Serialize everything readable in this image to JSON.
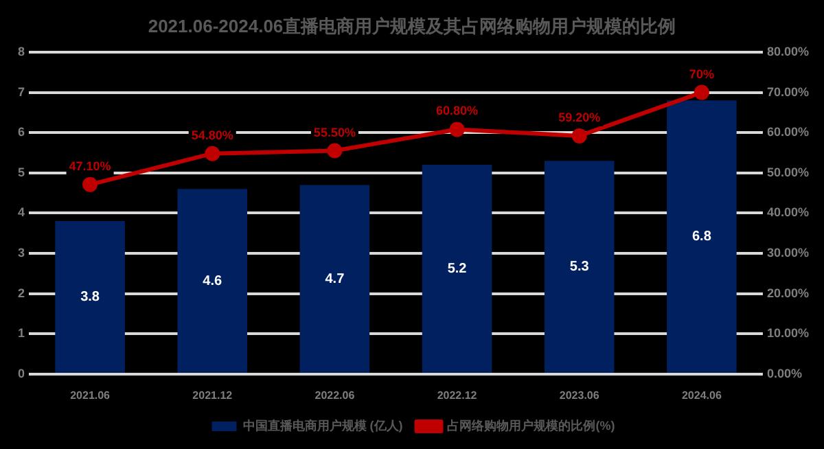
{
  "chart_data": {
    "type": "bar",
    "title": "2021.06-2024.06直播电商用户规模及其占网络购物用户规模的比例",
    "categories": [
      "2021.06",
      "2021.12",
      "2022.06",
      "2022.12",
      "2023.06",
      "2024.06"
    ],
    "series": [
      {
        "name": "中国直播电商用户规模 (亿人)",
        "color": "#002060",
        "values": [
          3.8,
          4.6,
          4.7,
          5.2,
          5.3,
          6.8
        ],
        "value_labels": [
          "3.8",
          "4.6",
          "4.7",
          "5.2",
          "5.3",
          "6.8"
        ]
      },
      {
        "name": "占网络购物用户规模的比例(%)",
        "type": "line",
        "axis": "y2",
        "color": "#c00000",
        "marker": "circle",
        "values": [
          47.1,
          54.8,
          55.5,
          60.8,
          59.2,
          70
        ],
        "value_labels": [
          "47.10%",
          "54.80%",
          "55.50%",
          "60.80%",
          "59.20%",
          "70%"
        ]
      }
    ],
    "ylim": [
      0,
      8
    ],
    "yticks": [
      0,
      1,
      2,
      3,
      4,
      5,
      6,
      7,
      8
    ],
    "y2lim": [
      0,
      80
    ],
    "y2ticks": [
      {
        "value": 0,
        "label": "0.00%"
      },
      {
        "value": 10,
        "label": "10.00%"
      },
      {
        "value": 20,
        "label": "20.00%"
      },
      {
        "value": 30,
        "label": "30.00%"
      },
      {
        "value": 40,
        "label": "40.00%"
      },
      {
        "value": 50,
        "label": "50.00%"
      },
      {
        "value": 60,
        "label": "60.00%"
      },
      {
        "value": 70,
        "label": "70.00%"
      },
      {
        "value": 80,
        "label": "80.00%"
      }
    ],
    "grid": "y",
    "legend": "bottom"
  }
}
